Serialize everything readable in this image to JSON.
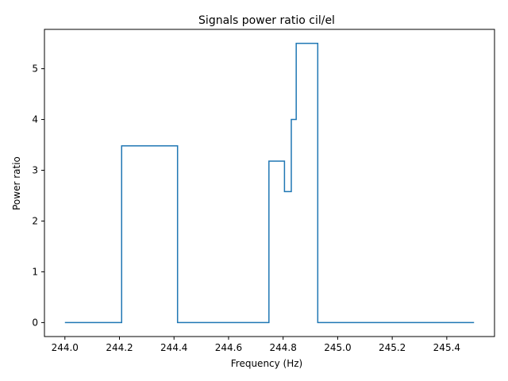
{
  "chart_data": {
    "type": "line",
    "title": "Signals power ratio cil/el",
    "xlabel": "Frequency (Hz)",
    "ylabel": "Power ratio",
    "xlim": [
      243.925,
      245.575
    ],
    "ylim": [
      -0.275,
      5.775
    ],
    "xticks": [
      244.0,
      244.2,
      244.4,
      244.6,
      244.8,
      245.0,
      245.2,
      245.4
    ],
    "xtick_labels": [
      "244.0",
      "244.2",
      "244.4",
      "244.6",
      "244.8",
      "245.0",
      "245.2",
      "245.4"
    ],
    "yticks": [
      0,
      1,
      2,
      3,
      4,
      5
    ],
    "ytick_labels": [
      "0",
      "1",
      "2",
      "3",
      "4",
      "5"
    ],
    "grid": false,
    "line_color": "#1f77b4",
    "series": [
      {
        "x": [
          244.0,
          244.208,
          244.208,
          244.413,
          244.413,
          244.748,
          244.748,
          244.805,
          244.805,
          244.83,
          244.83,
          244.848,
          244.848,
          244.927,
          244.927,
          245.5
        ],
        "y": [
          0,
          0,
          3.48,
          3.48,
          0,
          0,
          3.18,
          3.18,
          2.58,
          2.58,
          4.0,
          4.0,
          5.5,
          5.5,
          0,
          0
        ]
      }
    ]
  }
}
